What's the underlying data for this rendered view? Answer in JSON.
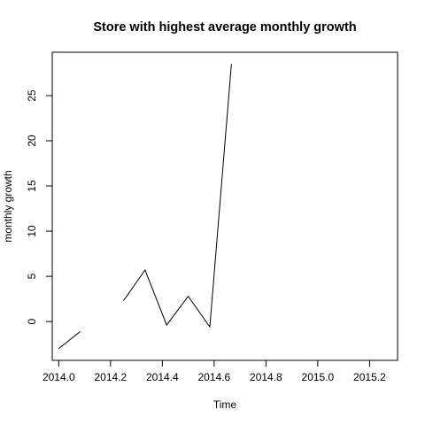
{
  "chart_data": {
    "type": "line",
    "title": "Store with highest average monthly growth",
    "xlabel": "Time",
    "ylabel": "monthly growth",
    "xlim": [
      2013.975,
      2015.308
    ],
    "ylim": [
      -4.3,
      29.8
    ],
    "x_ticks": [
      2014.0,
      2014.2,
      2014.4,
      2014.6,
      2014.8,
      2015.0,
      2015.2
    ],
    "x_tick_labels": [
      "2014.0",
      "2014.2",
      "2014.4",
      "2014.6",
      "2014.8",
      "2015.0",
      "2015.2"
    ],
    "y_ticks": [
      0,
      5,
      10,
      15,
      20,
      25
    ],
    "y_tick_labels": [
      "0",
      "5",
      "10",
      "15",
      "20",
      "25"
    ],
    "grid": false,
    "series": [
      {
        "x": [
          2014.0,
          2014.0833,
          2014.1667,
          2014.25,
          2014.3333,
          2014.4167,
          2014.5,
          2014.5833,
          2014.6667
        ],
        "values": [
          -3.0,
          -1.1,
          null,
          2.3,
          5.7,
          -0.4,
          2.8,
          -0.6,
          28.5
        ]
      }
    ]
  }
}
